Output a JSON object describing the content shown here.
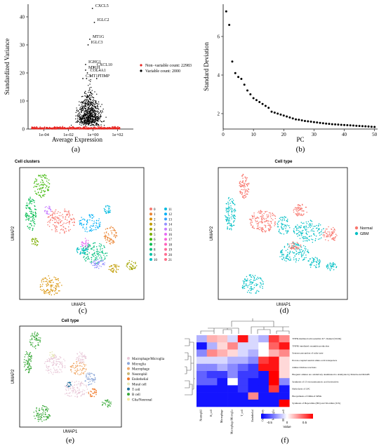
{
  "figure": {
    "panel_labels": [
      "(a)",
      "(b)",
      "(c)",
      "(d)",
      "(e)",
      "(f)"
    ]
  },
  "chart_data": [
    {
      "panel": "(a)",
      "type": "scatter",
      "xlabel": "Average Expression",
      "ylabel": "Standardized Variance",
      "x_scale": "log",
      "x_ticks": [
        "1e-04",
        "1e-02",
        "1e+00",
        "1e+02"
      ],
      "y_ticks": [
        0,
        10,
        20,
        30,
        40
      ],
      "ylim": [
        0,
        44
      ],
      "legend": {
        "placement": "right",
        "entries": [
          {
            "label": "Non−variable count: 22983",
            "color": "#e8231f"
          },
          {
            "label": "Variable count: 2000",
            "color": "#000000"
          }
        ]
      },
      "annotations": [
        {
          "label": "CXCL5",
          "x": 0.9,
          "y": 43
        },
        {
          "label": "IGLC2",
          "x": 1.3,
          "y": 38
        },
        {
          "label": "MT1G",
          "x": 0.55,
          "y": 32
        },
        {
          "label": "IGLC3",
          "x": 0.4,
          "y": 30
        },
        {
          "label": "IGHG1",
          "x": 0.25,
          "y": 23
        },
        {
          "label": "MT1H",
          "x": 0.25,
          "y": 21
        },
        {
          "label": "CXCL10",
          "x": 1.2,
          "y": 22
        },
        {
          "label": "COL4A1",
          "x": 0.35,
          "y": 20
        },
        {
          "label": "C3",
          "x": 0.15,
          "y": 18
        },
        {
          "label": "MT1F",
          "x": 0.3,
          "y": 18
        },
        {
          "label": "TIMP",
          "x": 2.0,
          "y": 18
        }
      ]
    },
    {
      "panel": "(b)",
      "type": "scatter",
      "xlabel": "PC",
      "ylabel": "Standard Deviation",
      "x_ticks": [
        0,
        10,
        20,
        30,
        40,
        50
      ],
      "y_ticks": [
        2,
        4,
        6
      ],
      "xlim": [
        0,
        51
      ],
      "ylim": [
        1.2,
        7.6
      ],
      "x": [
        1,
        2,
        3,
        4,
        5,
        6,
        7,
        8,
        9,
        10,
        11,
        12,
        13,
        14,
        15,
        16,
        17,
        18,
        19,
        20,
        21,
        22,
        23,
        24,
        25,
        26,
        27,
        28,
        29,
        30,
        31,
        32,
        33,
        34,
        35,
        36,
        37,
        38,
        39,
        40,
        41,
        42,
        43,
        44,
        45,
        46,
        47,
        48,
        49,
        50
      ],
      "y": [
        7.3,
        6.6,
        4.7,
        4.1,
        3.9,
        3.8,
        3.5,
        3.2,
        3.0,
        2.8,
        2.7,
        2.6,
        2.5,
        2.4,
        2.3,
        2.1,
        2.05,
        2.0,
        1.95,
        1.9,
        1.85,
        1.8,
        1.75,
        1.7,
        1.68,
        1.65,
        1.62,
        1.6,
        1.58,
        1.56,
        1.54,
        1.52,
        1.5,
        1.48,
        1.47,
        1.45,
        1.44,
        1.43,
        1.42,
        1.41,
        1.4,
        1.39,
        1.38,
        1.37,
        1.36,
        1.35,
        1.34,
        1.33,
        1.32,
        1.31
      ]
    },
    {
      "panel": "(c)",
      "type": "scatter",
      "title": "Cell clusters",
      "xlabel": "UMAP1",
      "ylabel": "UMAP2",
      "legend": {
        "placement": "right",
        "entries": [
          {
            "label": "0",
            "color": "#f8766d"
          },
          {
            "label": "1",
            "color": "#ea8331"
          },
          {
            "label": "2",
            "color": "#d89000"
          },
          {
            "label": "3",
            "color": "#c09b00"
          },
          {
            "label": "4",
            "color": "#a3a500"
          },
          {
            "label": "5",
            "color": "#7cae00"
          },
          {
            "label": "6",
            "color": "#39b600"
          },
          {
            "label": "7",
            "color": "#00bb4e"
          },
          {
            "label": "8",
            "color": "#00bf7d"
          },
          {
            "label": "9",
            "color": "#00c1a3"
          },
          {
            "label": "10",
            "color": "#00bfc4"
          },
          {
            "label": "11",
            "color": "#00bae0"
          },
          {
            "label": "12",
            "color": "#00b0f6"
          },
          {
            "label": "13",
            "color": "#35a2ff"
          },
          {
            "label": "14",
            "color": "#9590ff"
          },
          {
            "label": "15",
            "color": "#c77cff"
          },
          {
            "label": "16",
            "color": "#e76bf3"
          },
          {
            "label": "17",
            "color": "#fa62db"
          },
          {
            "label": "18",
            "color": "#ff62bc"
          },
          {
            "label": "19",
            "color": "#ff6a98"
          },
          {
            "label": "20",
            "color": "#ff6c91"
          },
          {
            "label": "21",
            "color": "#ff7088"
          }
        ]
      }
    },
    {
      "panel": "(d)",
      "type": "scatter",
      "title": "Cell type",
      "xlabel": "UMAP1",
      "ylabel": "UMAP2",
      "legend": {
        "placement": "right",
        "entries": [
          {
            "label": "Normal",
            "color": "#f8766d"
          },
          {
            "label": "GBM",
            "color": "#00bfc4"
          }
        ]
      }
    },
    {
      "panel": "(e)",
      "type": "scatter",
      "title": "Cell type",
      "xlabel": "UMAP1",
      "ylabel": "UMAP2",
      "legend": {
        "placement": "right",
        "entries": [
          {
            "label": "Macrophage/Microglia",
            "color": "#e8c8d8"
          },
          {
            "label": "Microglia",
            "color": "#8ea8d8"
          },
          {
            "label": "Macrophage",
            "color": "#f0a868"
          },
          {
            "label": "Neutrophil",
            "color": "#c8b878"
          },
          {
            "label": "Endothelial",
            "color": "#f07828"
          },
          {
            "label": "Mural cell",
            "color": "#e8e8b8"
          },
          {
            "label": "T cell",
            "color": "#1e6e9a"
          },
          {
            "label": "B cell",
            "color": "#38a838"
          },
          {
            "label": "Glia/Neuronal",
            "color": "#f4e9a0"
          }
        ]
      }
    },
    {
      "panel": "(f)",
      "type": "heatmap",
      "columns": [
        "Neutrophil",
        "B_cell",
        "Macrophage",
        "Macrophage/Microglia",
        "T_cell",
        "Endothelial",
        "Oscillatory",
        "Microglia",
        "Mural_cell"
      ],
      "rows": [
        "TNFR-mediated acid-sensitive K+ channel (TASK)",
        "TNFR1-mediated ceramide production",
        "Sensory perception of salty taste",
        "Proton-coupled neutral amino acid transporters",
        "Amine Oxidase reactions",
        "Biogenic amines are oxidatively deaminated to aldehydes by MAOA and MAOB",
        "Synthesis of 15-eicosatetraenoic acid derivatives",
        "Hydrolysis of LPC",
        "Biosynthesis of DPAn-6 SPMs",
        "Synthesis of Hepoxilins (HX) and Trioxilins (TrX)"
      ],
      "values": [
        [
          -0.2,
          0.2,
          0.15,
          -0.1,
          0.6,
          -0.1,
          -0.2,
          0.5,
          0.3
        ],
        [
          -0.6,
          -0.2,
          0.1,
          0.3,
          -0.1,
          -0.1,
          0.0,
          0.4,
          0.6
        ],
        [
          -0.3,
          0.3,
          0.2,
          0.1,
          -0.1,
          -0.2,
          0.0,
          0.2,
          0.3
        ],
        [
          -0.1,
          -0.1,
          -0.1,
          -0.2,
          -0.2,
          -0.3,
          0.5,
          0.6,
          0.1
        ],
        [
          -0.3,
          -0.3,
          -0.2,
          -0.3,
          -0.4,
          -0.5,
          0.6,
          0.6,
          0.1
        ],
        [
          -0.4,
          -0.5,
          -0.5,
          -0.3,
          -0.5,
          -0.5,
          -0.6,
          0.65,
          0.1
        ],
        [
          -0.4,
          -0.4,
          -0.6,
          0.0,
          -0.5,
          -0.6,
          -0.6,
          0.65,
          -0.3
        ],
        [
          -0.6,
          -0.6,
          -0.6,
          -0.6,
          -0.5,
          -0.6,
          -0.6,
          0.5,
          -0.6
        ],
        [
          -0.6,
          -0.6,
          -0.6,
          -0.6,
          -0.6,
          0.3,
          -0.6,
          -0.6,
          -0.6
        ],
        [
          -0.6,
          -0.6,
          -0.6,
          -0.6,
          -0.6,
          -0.6,
          -0.6,
          -0.6,
          0.65
        ]
      ],
      "colorbar": {
        "ticks": [
          "-0.5",
          "0",
          "0.5"
        ],
        "label": "Value",
        "colors": [
          "#0000ff",
          "#ffffff",
          "#ff0000"
        ]
      }
    }
  ]
}
